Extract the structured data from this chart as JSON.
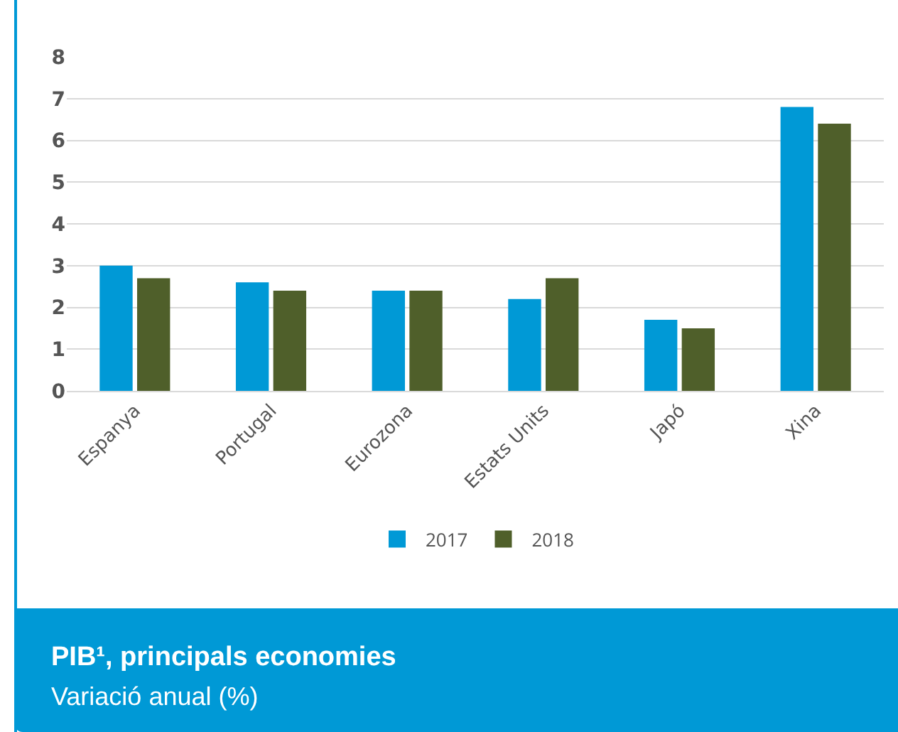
{
  "chart_data": {
    "type": "bar",
    "title": "PIB¹, principals economies",
    "subtitle": "Variació anual (%)",
    "categories": [
      "Espanya",
      "Portugal",
      "Eurozona",
      "Estats Units",
      "Japó",
      "Xina"
    ],
    "series": [
      {
        "name": "2017",
        "color": "#0099d6",
        "values": [
          3.0,
          2.6,
          2.4,
          2.2,
          1.7,
          6.8
        ]
      },
      {
        "name": "2018",
        "color": "#4f5f2a",
        "values": [
          2.7,
          2.4,
          2.4,
          2.7,
          1.5,
          6.4
        ]
      }
    ],
    "ylim": [
      0,
      8
    ],
    "yticks": [
      0,
      1,
      2,
      3,
      4,
      5,
      6,
      7,
      8
    ],
    "grid": "y",
    "legend": "bottom"
  }
}
